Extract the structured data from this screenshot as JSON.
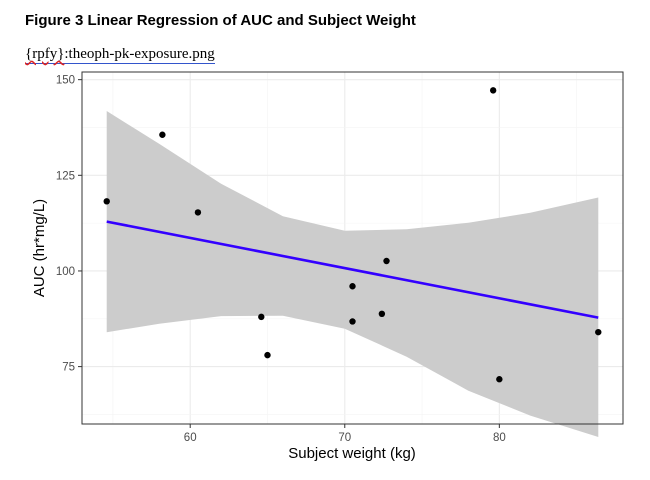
{
  "document": {
    "heading": "Figure 3 Linear Regression of AUC and Subject Weight",
    "source_prefix": "{rpfy}",
    "source_rest": ":theoph-pk-exposure.png"
  },
  "chart_data": {
    "type": "scatter",
    "xlabel": "Subject weight (kg)",
    "ylabel": "AUC (hr*mg/L)",
    "xlim": [
      53,
      88
    ],
    "ylim": [
      60,
      152
    ],
    "x_ticks": [
      60,
      70,
      80
    ],
    "y_ticks": [
      75,
      100,
      125,
      150
    ],
    "grid": true,
    "points": [
      {
        "x": 54.6,
        "y": 118.2
      },
      {
        "x": 58.2,
        "y": 135.6
      },
      {
        "x": 60.5,
        "y": 115.3
      },
      {
        "x": 64.6,
        "y": 88.0
      },
      {
        "x": 65.0,
        "y": 78.0
      },
      {
        "x": 70.5,
        "y": 96.0
      },
      {
        "x": 70.5,
        "y": 86.8
      },
      {
        "x": 72.4,
        "y": 88.8
      },
      {
        "x": 72.7,
        "y": 102.6
      },
      {
        "x": 79.6,
        "y": 147.2
      },
      {
        "x": 80.0,
        "y": 71.7
      },
      {
        "x": 86.4,
        "y": 84.0
      }
    ],
    "fit_line": {
      "x": [
        54.6,
        86.4
      ],
      "y": [
        112.9,
        87.8
      ],
      "color": "#3300ff"
    },
    "confidence_band": {
      "color": "#cccccc",
      "x": [
        54.6,
        58,
        62,
        66,
        70,
        74,
        78,
        82,
        86.4
      ],
      "upper": [
        141.8,
        133.2,
        122.8,
        114.3,
        110.5,
        110.9,
        112.6,
        115.2,
        119.2
      ],
      "lower": [
        84.0,
        86.2,
        88.2,
        88.3,
        84.9,
        77.6,
        68.7,
        62.2,
        56.6
      ]
    },
    "point_color": "#000000"
  }
}
